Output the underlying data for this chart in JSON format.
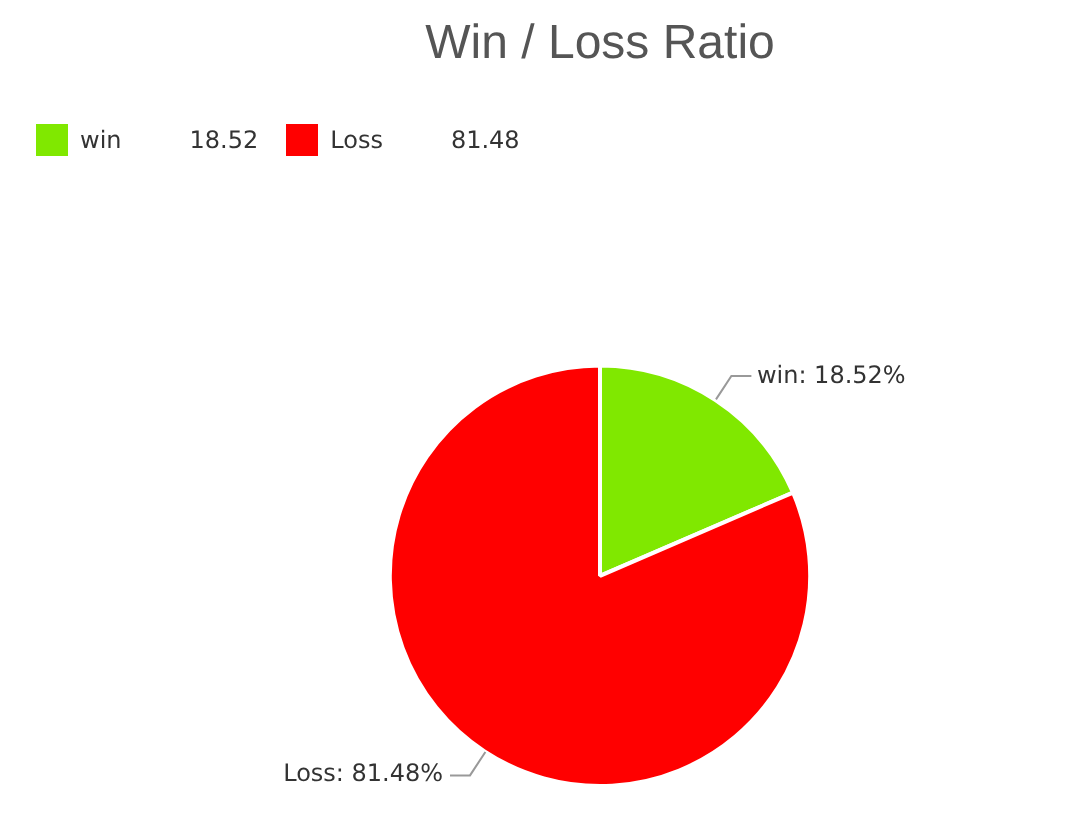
{
  "chart_data": {
    "type": "pie",
    "title": "Win / Loss Ratio",
    "categories": [
      "win",
      "Loss"
    ],
    "values": [
      18.52,
      81.48
    ],
    "colors": [
      "#80e800",
      "#ff0000"
    ],
    "legend": "top left",
    "annotations": [
      "18.52",
      "81.48"
    ],
    "value_labels": [
      "win: 18.52%",
      "Loss: 81.48%"
    ]
  }
}
